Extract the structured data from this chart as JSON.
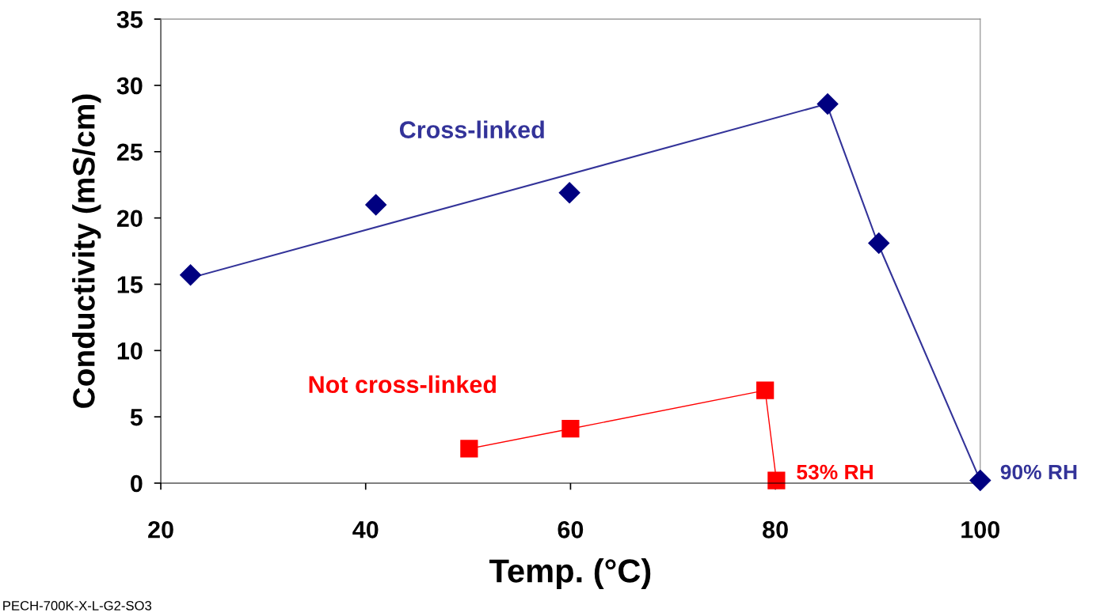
{
  "chart_data": {
    "type": "scatter",
    "xlabel": "Temp. (°C)",
    "ylabel": "Conductivity (mS/cm)",
    "xlim": [
      20,
      100
    ],
    "xticks": [
      20,
      40,
      60,
      80,
      100
    ],
    "ylim": [
      0,
      35
    ],
    "yticks": [
      0,
      5,
      10,
      15,
      20,
      25,
      30,
      35
    ],
    "grid": false,
    "legend": false,
    "series": [
      {
        "name": "Cross-linked",
        "color": "#000080",
        "marker": "diamond",
        "x": [
          22.9,
          41.0,
          59.9,
          85.1,
          90.1,
          100
        ],
        "values": [
          15.7,
          21.0,
          21.9,
          28.6,
          18.1,
          0.2
        ]
      },
      {
        "type": "line",
        "color": "#333399",
        "marker": "none",
        "line_style": "solid",
        "x": [
          23,
          85,
          90,
          100
        ],
        "values": [
          15.5,
          28.6,
          18.1,
          0.2
        ]
      },
      {
        "name": "Not cross-linked",
        "type": "line",
        "color": "#ff0000",
        "marker": "square",
        "line_style": "solid",
        "x": [
          50.1,
          60.0,
          79.0,
          80.1
        ],
        "values": [
          2.6,
          4.1,
          7.0,
          0.2
        ]
      }
    ],
    "annotations": [
      {
        "text": "53% RH",
        "x": 80.1,
        "y": 0.2
      },
      {
        "text": "90% RH",
        "x": 100,
        "y": 0.2
      },
      "PECH-700K-X-L-G2-SO3"
    ]
  }
}
